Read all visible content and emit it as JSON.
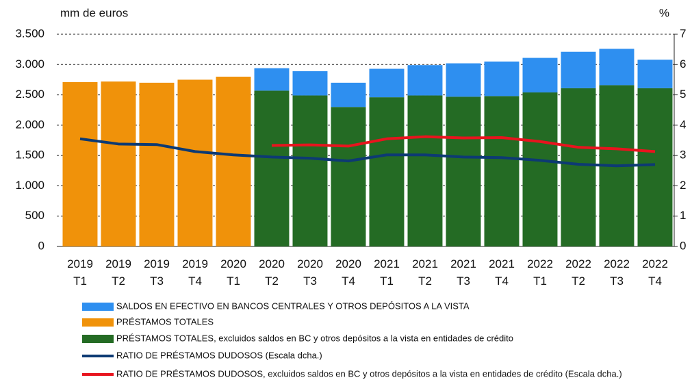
{
  "chart_data": {
    "type": "bar",
    "y_label": "mm de euros",
    "y2_label": "%",
    "categories": [
      "2019 T1",
      "2019 T2",
      "2019 T3",
      "2019 T4",
      "2020 T1",
      "2020 T2",
      "2020 T3",
      "2020 T4",
      "2021 T1",
      "2021 T2",
      "2021 T3",
      "2021 T4",
      "2022 T1",
      "2022 T2",
      "2022 T3",
      "2022 T4"
    ],
    "ylim": [
      0,
      3500
    ],
    "yticks": [
      0,
      {
        "value": 500,
        "label": "500"
      },
      {
        "value": 1000,
        "label": "1.000"
      },
      {
        "value": 1500,
        "label": "1.500"
      },
      {
        "value": 2000,
        "label": "2.000"
      },
      {
        "value": 2500,
        "label": "2.500"
      },
      {
        "value": 3000,
        "label": "3.000"
      },
      {
        "value": 3500,
        "label": "3.500"
      }
    ],
    "y2lim": [
      0,
      7
    ],
    "y2ticks": [
      0,
      1,
      2,
      3,
      4,
      5,
      6,
      7
    ],
    "grid": true,
    "series": [
      {
        "name": "SALDOS EN EFECTIVO EN BANCOS CENTRALES Y OTROS DEPÓSITOS A LA VISTA",
        "type": "bar",
        "color": "#2e8ff0",
        "values": [
          null,
          null,
          null,
          null,
          null,
          370,
          400,
          400,
          470,
          500,
          550,
          570,
          570,
          600,
          600,
          470
        ]
      },
      {
        "name": "PRÉSTAMOS TOTALES",
        "type": "bar",
        "color": "#f0920a",
        "values": [
          2710,
          2720,
          2700,
          2750,
          2800,
          null,
          null,
          null,
          null,
          null,
          null,
          null,
          null,
          null,
          null,
          null
        ]
      },
      {
        "name": "PRÉSTAMOS TOTALES, excluidos saldos en BC y otros depósitos a la vista en entidades de crédito",
        "type": "bar",
        "color": "#246b24",
        "values": [
          null,
          null,
          null,
          null,
          null,
          2570,
          2490,
          2300,
          2460,
          2490,
          2470,
          2480,
          2540,
          2610,
          2660,
          2610
        ]
      },
      {
        "name": "RATIO DE PRÉSTAMOS DUDOSOS (Escala dcha.)",
        "type": "line",
        "axis": "y2",
        "color": "#0d3a73",
        "values": [
          3.55,
          3.38,
          3.36,
          3.13,
          3.02,
          2.95,
          2.91,
          2.82,
          3.02,
          3.02,
          2.95,
          2.93,
          2.84,
          2.71,
          2.66,
          2.7
        ]
      },
      {
        "name": "RATIO DE PRÉSTAMOS DUDOSOS, excluidos saldos en BC y otros depósitos a la vista en entidades de crédito (Escala dcha.)",
        "type": "line",
        "axis": "y2",
        "color": "#e8141e",
        "values": [
          null,
          null,
          null,
          null,
          null,
          3.33,
          3.35,
          3.31,
          3.55,
          3.62,
          3.58,
          3.59,
          3.46,
          3.27,
          3.22,
          3.13
        ]
      }
    ]
  }
}
